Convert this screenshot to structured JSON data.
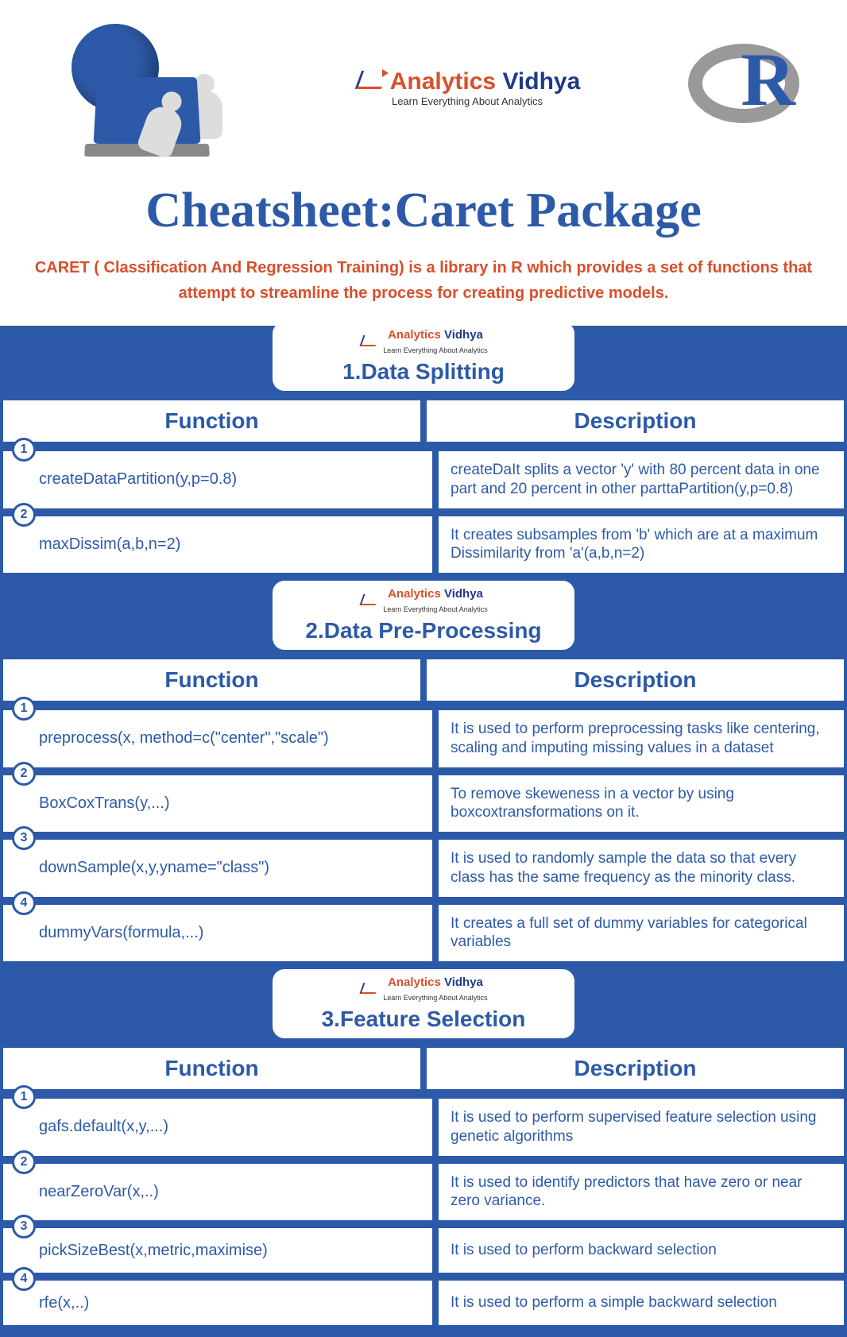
{
  "colors": {
    "blue": "#2d5aa8",
    "orange": "#d94f2a",
    "grey": "#999999",
    "white": "#ffffff"
  },
  "brand": {
    "part1": "Analytics",
    "part2": "Vidhya",
    "tagline": "Learn Everything About Analytics"
  },
  "r_logo": {
    "letter": "R"
  },
  "title": "Cheatsheet:Caret Package",
  "intro": "CARET ( Classification And Regression Training) is a library in R which provides a set of functions that attempt to streamline the process for creating predictive models.",
  "columns": {
    "func": "Function",
    "desc": "Description"
  },
  "sections": [
    {
      "title": "1.Data Splitting",
      "rows": [
        {
          "n": "1",
          "func": "createDataPartition(y,p=0.8)",
          "desc": "createDaIt splits a vector 'y' with 80 percent data in one part and 20 percent in other parttaPartition(y,p=0.8)"
        },
        {
          "n": "2",
          "func": "maxDissim(a,b,n=2)",
          "desc": "It creates subsamples from 'b' which are at a maximum Dissimilarity from 'a'(a,b,n=2)"
        }
      ]
    },
    {
      "title": "2.Data Pre-Processing",
      "rows": [
        {
          "n": "1",
          "func": "preprocess(x, method=c(\"center\",\"scale\")",
          "desc": "It is used to perform preprocessing tasks like centering, scaling and imputing missing values in a dataset"
        },
        {
          "n": "2",
          "func": "BoxCoxTrans(y,...)",
          "desc": "To remove skeweness in a vector by using boxcoxtransformations on it."
        },
        {
          "n": "3",
          "func": "downSample(x,y,yname=\"class\")",
          "desc": "It is used to randomly sample the data so that every class has the same frequency as the minority class."
        },
        {
          "n": "4",
          "func": "dummyVars(formula,...)",
          "desc": "It creates a full set of dummy variables for categorical variables"
        }
      ]
    },
    {
      "title": "3.Feature Selection",
      "rows": [
        {
          "n": "1",
          "func": "gafs.default(x,y,...)",
          "desc": "It is used to perform supervised feature selection using genetic algorithms"
        },
        {
          "n": "2",
          "func": "nearZeroVar(x,..)",
          "desc": "It is used to identify predictors that have zero or near zero variance."
        },
        {
          "n": "3",
          "func": "pickSizeBest(x,metric,maximise)",
          "desc": "It is used to perform backward selection"
        },
        {
          "n": "4",
          "func": "rfe(x,..)",
          "desc": "It is used to perform a simple backward selection"
        }
      ]
    }
  ]
}
